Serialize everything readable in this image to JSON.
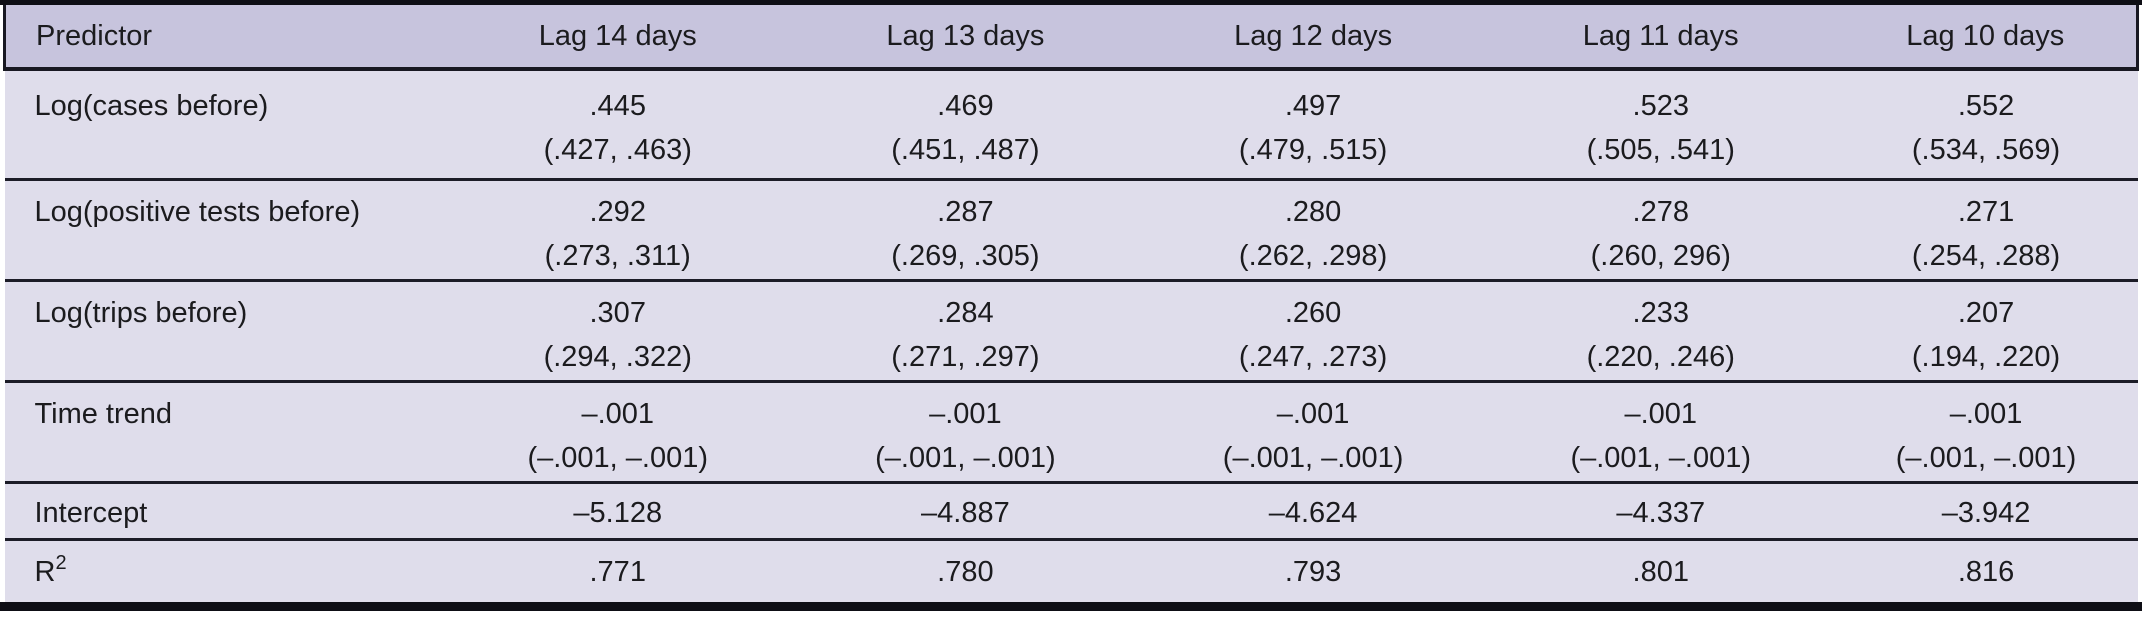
{
  "table": {
    "title_hint": "Regression results by lag (days)",
    "columns": [
      "Predictor",
      "Lag 14 days",
      "Lag 13 days",
      "Lag 12 days",
      "Lag 11 days",
      "Lag 10 days"
    ],
    "rows": [
      {
        "label": "Log(cases before)",
        "cells": [
          {
            "est": ".445",
            "ci": "(.427, .463)"
          },
          {
            "est": ".469",
            "ci": "(.451, .487)"
          },
          {
            "est": ".497",
            "ci": "(.479, .515)"
          },
          {
            "est": ".523",
            "ci": "(.505, .541)"
          },
          {
            "est": ".552",
            "ci": "(.534, .569)"
          }
        ]
      },
      {
        "label": "Log(positive tests before)",
        "cells": [
          {
            "est": ".292",
            "ci": "(.273, .311)"
          },
          {
            "est": ".287",
            "ci": "(.269, .305)"
          },
          {
            "est": ".280",
            "ci": "(.262, .298)"
          },
          {
            "est": ".278",
            "ci": "(.260, 296)"
          },
          {
            "est": ".271",
            "ci": "(.254, .288)"
          }
        ]
      },
      {
        "label": "Log(trips before)",
        "cells": [
          {
            "est": ".307",
            "ci": "(.294, .322)"
          },
          {
            "est": ".284",
            "ci": "(.271, .297)"
          },
          {
            "est": ".260",
            "ci": "(.247, .273)"
          },
          {
            "est": ".233",
            "ci": "(.220, .246)"
          },
          {
            "est": ".207",
            "ci": "(.194, .220)"
          }
        ]
      },
      {
        "label": "Time trend",
        "cells": [
          {
            "est": "–.001",
            "ci": "(–.001, –.001)"
          },
          {
            "est": "–.001",
            "ci": "(–.001, –.001)"
          },
          {
            "est": "–.001",
            "ci": "(–.001, –.001)"
          },
          {
            "est": "–.001",
            "ci": "(–.001, –.001)"
          },
          {
            "est": "–.001",
            "ci": "(–.001, –.001)"
          }
        ]
      },
      {
        "label": "Intercept",
        "cells": [
          {
            "est": "–5.128",
            "ci": ""
          },
          {
            "est": "–4.887",
            "ci": ""
          },
          {
            "est": "–4.624",
            "ci": ""
          },
          {
            "est": "–4.337",
            "ci": ""
          },
          {
            "est": "–3.942",
            "ci": ""
          }
        ]
      },
      {
        "label": "R",
        "label_sup": "2",
        "cells": [
          {
            "est": ".771",
            "ci": ""
          },
          {
            "est": ".780",
            "ci": ""
          },
          {
            "est": ".793",
            "ci": ""
          },
          {
            "est": ".801",
            "ci": ""
          },
          {
            "est": ".816",
            "ci": ""
          }
        ]
      }
    ]
  },
  "colors": {
    "header_background": "#c7c4dd",
    "body_background": "#dfddeb",
    "rule": "#14141d",
    "text": "#1b1b1e",
    "page_background": "#ffffff"
  }
}
